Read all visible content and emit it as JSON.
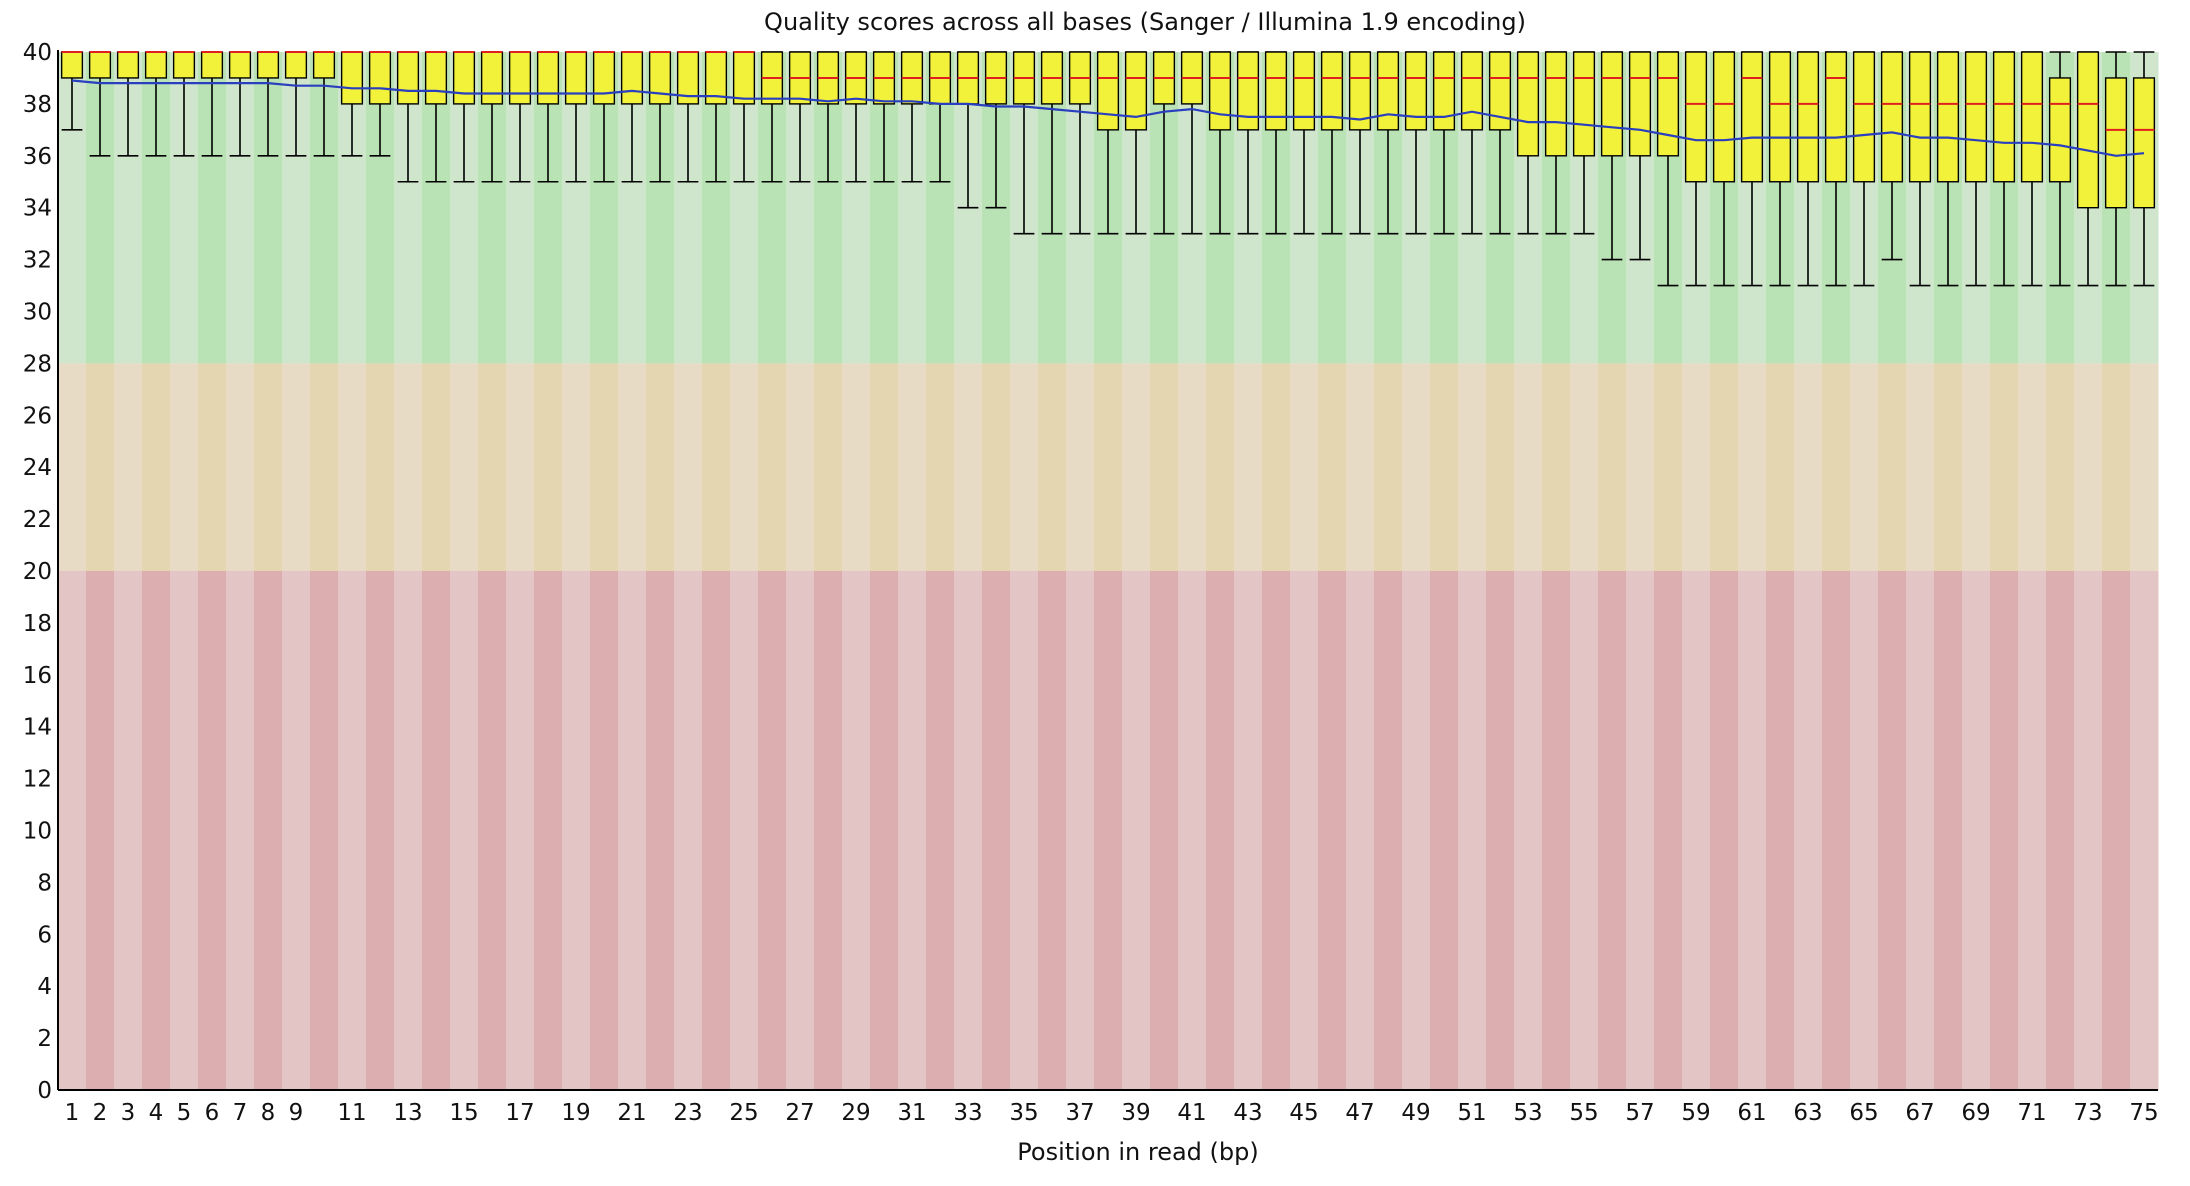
{
  "chart_data": {
    "type": "box",
    "title": "Quality scores across all bases (Sanger / Illumina 1.9 encoding)",
    "xlabel": "Position in read (bp)",
    "ylabel": "",
    "ylim": [
      0,
      40
    ],
    "yticks": [
      0,
      2,
      4,
      6,
      8,
      10,
      12,
      14,
      16,
      18,
      20,
      22,
      24,
      26,
      28,
      30,
      32,
      34,
      36,
      38,
      40
    ],
    "x": [
      1,
      2,
      3,
      4,
      5,
      6,
      7,
      8,
      9,
      10,
      11,
      12,
      13,
      14,
      15,
      16,
      17,
      18,
      19,
      20,
      21,
      22,
      23,
      24,
      25,
      26,
      27,
      28,
      29,
      30,
      31,
      32,
      33,
      34,
      35,
      36,
      37,
      38,
      39,
      40,
      41,
      42,
      43,
      44,
      45,
      46,
      47,
      48,
      49,
      50,
      51,
      52,
      53,
      54,
      55,
      56,
      57,
      58,
      59,
      60,
      61,
      62,
      63,
      64,
      65,
      66,
      67,
      68,
      69,
      70,
      71,
      72,
      73,
      74,
      75
    ],
    "xticks": [
      1,
      2,
      3,
      4,
      5,
      6,
      7,
      8,
      9,
      11,
      13,
      15,
      17,
      19,
      21,
      23,
      25,
      27,
      29,
      31,
      33,
      35,
      37,
      39,
      41,
      43,
      45,
      47,
      49,
      51,
      53,
      55,
      57,
      59,
      61,
      63,
      65,
      67,
      69,
      71,
      73,
      75
    ],
    "q1": [
      39,
      39,
      39,
      39,
      39,
      39,
      39,
      39,
      39,
      39,
      38,
      38,
      38,
      38,
      38,
      38,
      38,
      38,
      38,
      38,
      38,
      38,
      38,
      38,
      38,
      38,
      38,
      38,
      38,
      38,
      38,
      38,
      38,
      38,
      38,
      38,
      38,
      37,
      37,
      38,
      38,
      37,
      37,
      37,
      37,
      37,
      37,
      37,
      37,
      37,
      37,
      37,
      36,
      36,
      36,
      36,
      36,
      36,
      35,
      35,
      35,
      35,
      35,
      35,
      35,
      35,
      35,
      35,
      35,
      35,
      35,
      35,
      34,
      34,
      34
    ],
    "median": [
      40,
      40,
      40,
      40,
      40,
      40,
      40,
      40,
      40,
      40,
      40,
      40,
      40,
      40,
      40,
      40,
      40,
      40,
      40,
      40,
      40,
      40,
      40,
      40,
      40,
      39,
      39,
      39,
      39,
      39,
      39,
      39,
      39,
      39,
      39,
      39,
      39,
      39,
      39,
      39,
      39,
      39,
      39,
      39,
      39,
      39,
      39,
      39,
      39,
      39,
      39,
      39,
      39,
      39,
      39,
      39,
      39,
      39,
      38,
      38,
      39,
      38,
      38,
      39,
      38,
      38,
      38,
      38,
      38,
      38,
      38,
      38,
      38,
      37,
      37
    ],
    "q3": [
      40,
      40,
      40,
      40,
      40,
      40,
      40,
      40,
      40,
      40,
      40,
      40,
      40,
      40,
      40,
      40,
      40,
      40,
      40,
      40,
      40,
      40,
      40,
      40,
      40,
      40,
      40,
      40,
      40,
      40,
      40,
      40,
      40,
      40,
      40,
      40,
      40,
      40,
      40,
      40,
      40,
      40,
      40,
      40,
      40,
      40,
      40,
      40,
      40,
      40,
      40,
      40,
      40,
      40,
      40,
      40,
      40,
      40,
      40,
      40,
      40,
      40,
      40,
      40,
      40,
      40,
      40,
      40,
      40,
      40,
      40,
      39,
      40,
      39,
      39
    ],
    "whisker_low": [
      37,
      36,
      36,
      36,
      36,
      36,
      36,
      36,
      36,
      36,
      36,
      36,
      35,
      35,
      35,
      35,
      35,
      35,
      35,
      35,
      35,
      35,
      35,
      35,
      35,
      35,
      35,
      35,
      35,
      35,
      35,
      35,
      34,
      34,
      33,
      33,
      33,
      33,
      33,
      33,
      33,
      33,
      33,
      33,
      33,
      33,
      33,
      33,
      33,
      33,
      33,
      33,
      33,
      33,
      33,
      32,
      32,
      31,
      31,
      31,
      31,
      31,
      31,
      31,
      31,
      32,
      31,
      31,
      31,
      31,
      31,
      31,
      31,
      31,
      31
    ],
    "whisker_high": [
      40,
      40,
      40,
      40,
      40,
      40,
      40,
      40,
      40,
      40,
      40,
      40,
      40,
      40,
      40,
      40,
      40,
      40,
      40,
      40,
      40,
      40,
      40,
      40,
      40,
      40,
      40,
      40,
      40,
      40,
      40,
      40,
      40,
      40,
      40,
      40,
      40,
      40,
      40,
      40,
      40,
      40,
      40,
      40,
      40,
      40,
      40,
      40,
      40,
      40,
      40,
      40,
      40,
      40,
      40,
      40,
      40,
      40,
      40,
      40,
      40,
      40,
      40,
      40,
      40,
      40,
      40,
      40,
      40,
      40,
      40,
      40,
      40,
      40,
      40
    ],
    "mean": [
      38.9,
      38.8,
      38.8,
      38.8,
      38.8,
      38.8,
      38.8,
      38.8,
      38.7,
      38.7,
      38.6,
      38.6,
      38.5,
      38.5,
      38.4,
      38.4,
      38.4,
      38.4,
      38.4,
      38.4,
      38.5,
      38.4,
      38.3,
      38.3,
      38.2,
      38.2,
      38.2,
      38.1,
      38.2,
      38.1,
      38.1,
      38.0,
      38.0,
      37.9,
      37.9,
      37.8,
      37.7,
      37.6,
      37.5,
      37.7,
      37.8,
      37.6,
      37.5,
      37.5,
      37.5,
      37.5,
      37.4,
      37.6,
      37.5,
      37.5,
      37.7,
      37.5,
      37.3,
      37.3,
      37.2,
      37.1,
      37.0,
      36.8,
      36.6,
      36.6,
      36.7,
      36.7,
      36.7,
      36.7,
      36.8,
      36.9,
      36.7,
      36.7,
      36.6,
      36.5,
      36.5,
      36.4,
      36.2,
      36.0,
      36.1
    ],
    "colors": {
      "box_fill": "#f2f23a",
      "median": "#e02020",
      "mean": "#2a3fbf",
      "whisker": "#000000",
      "good_light": "#cfe6cd",
      "good_dark": "#b9e3b5",
      "warn_light": "#e7dbc5",
      "warn_dark": "#e4d6b0",
      "bad_light": "#e4c5c6",
      "bad_dark": "#ddaeaf"
    },
    "zones": [
      {
        "name": "good",
        "from": 28,
        "to": 40
      },
      {
        "name": "warn",
        "from": 20,
        "to": 28
      },
      {
        "name": "bad",
        "from": 0,
        "to": 20
      }
    ]
  }
}
